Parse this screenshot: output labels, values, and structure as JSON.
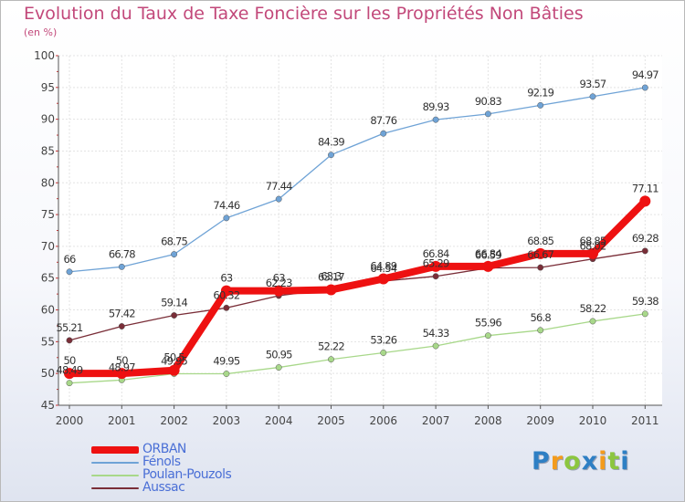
{
  "header": {
    "title": "Evolution du Taux de Taxe Foncière sur les Propriétés Non Bâties",
    "subtitle": "(en %)"
  },
  "logo": {
    "text": "Proxiti",
    "letter_colors": [
      "#2e7fc4",
      "#f39b1c",
      "#8cc63f",
      "#2e7fc4",
      "#f39b1c",
      "#8cc63f",
      "#2e7fc4"
    ]
  },
  "chart_data": {
    "type": "line",
    "title": "Evolution du Taux de Taxe Foncière sur les Propriétés Non Bâties",
    "ylabel": "(en %)",
    "ylim": [
      45,
      100
    ],
    "yticks": [
      "45",
      "50",
      "55",
      "60",
      "65",
      "70",
      "75",
      "80",
      "85",
      "90",
      "95",
      "100"
    ],
    "categories": [
      "2000",
      "2001",
      "2002",
      "2003",
      "2004",
      "2005",
      "2006",
      "2007",
      "2008",
      "2009",
      "2010",
      "2011"
    ],
    "grid": true,
    "legend_position": "bottom-left",
    "series": [
      {
        "name": "Fénols",
        "color": "#6fa3d6",
        "values": [
          66,
          66.78,
          68.75,
          74.46,
          77.44,
          84.39,
          87.76,
          89.93,
          90.83,
          92.19,
          93.57,
          94.97
        ],
        "labels": [
          "66",
          "66.78",
          "68.75",
          "74.46",
          "77.44",
          "84.39",
          "87.76",
          "89.93",
          "90.83",
          "92.19",
          "93.57",
          "94.97"
        ]
      },
      {
        "name": "Poulan-Pouzols",
        "color": "#a8d88a",
        "values": [
          48.49,
          48.97,
          49.95,
          49.95,
          50.95,
          52.22,
          53.26,
          54.33,
          55.96,
          56.8,
          58.22,
          59.38
        ],
        "labels": [
          "48.49",
          "48.97",
          "49.95",
          "49.95",
          "50.95",
          "52.22",
          "53.26",
          "54.33",
          "55.96",
          "56.8",
          "58.22",
          "59.38"
        ]
      },
      {
        "name": "Aussac",
        "color": "#7a2e38",
        "values": [
          55.21,
          57.42,
          59.14,
          60.32,
          62.23,
          63.3,
          64.54,
          65.29,
          66.59,
          66.67,
          68.02,
          69.28
        ],
        "labels": [
          "55.21",
          "57.42",
          "59.14",
          "60.32",
          "62.23",
          "63.3",
          "64.54",
          "65.29",
          "66.59",
          "66.67",
          "68.02",
          "69.28"
        ]
      },
      {
        "name": "ORBAN",
        "color": "#ee1111",
        "values": [
          50,
          50,
          50.5,
          63,
          63,
          63.17,
          64.89,
          66.84,
          66.84,
          68.85,
          68.85,
          77.11
        ],
        "labels": [
          "50",
          "50",
          "50.5",
          "63",
          "63",
          "63.17",
          "64.89",
          "66.84",
          "66.84",
          "68.85",
          "68.85",
          "77.11"
        ]
      }
    ]
  }
}
